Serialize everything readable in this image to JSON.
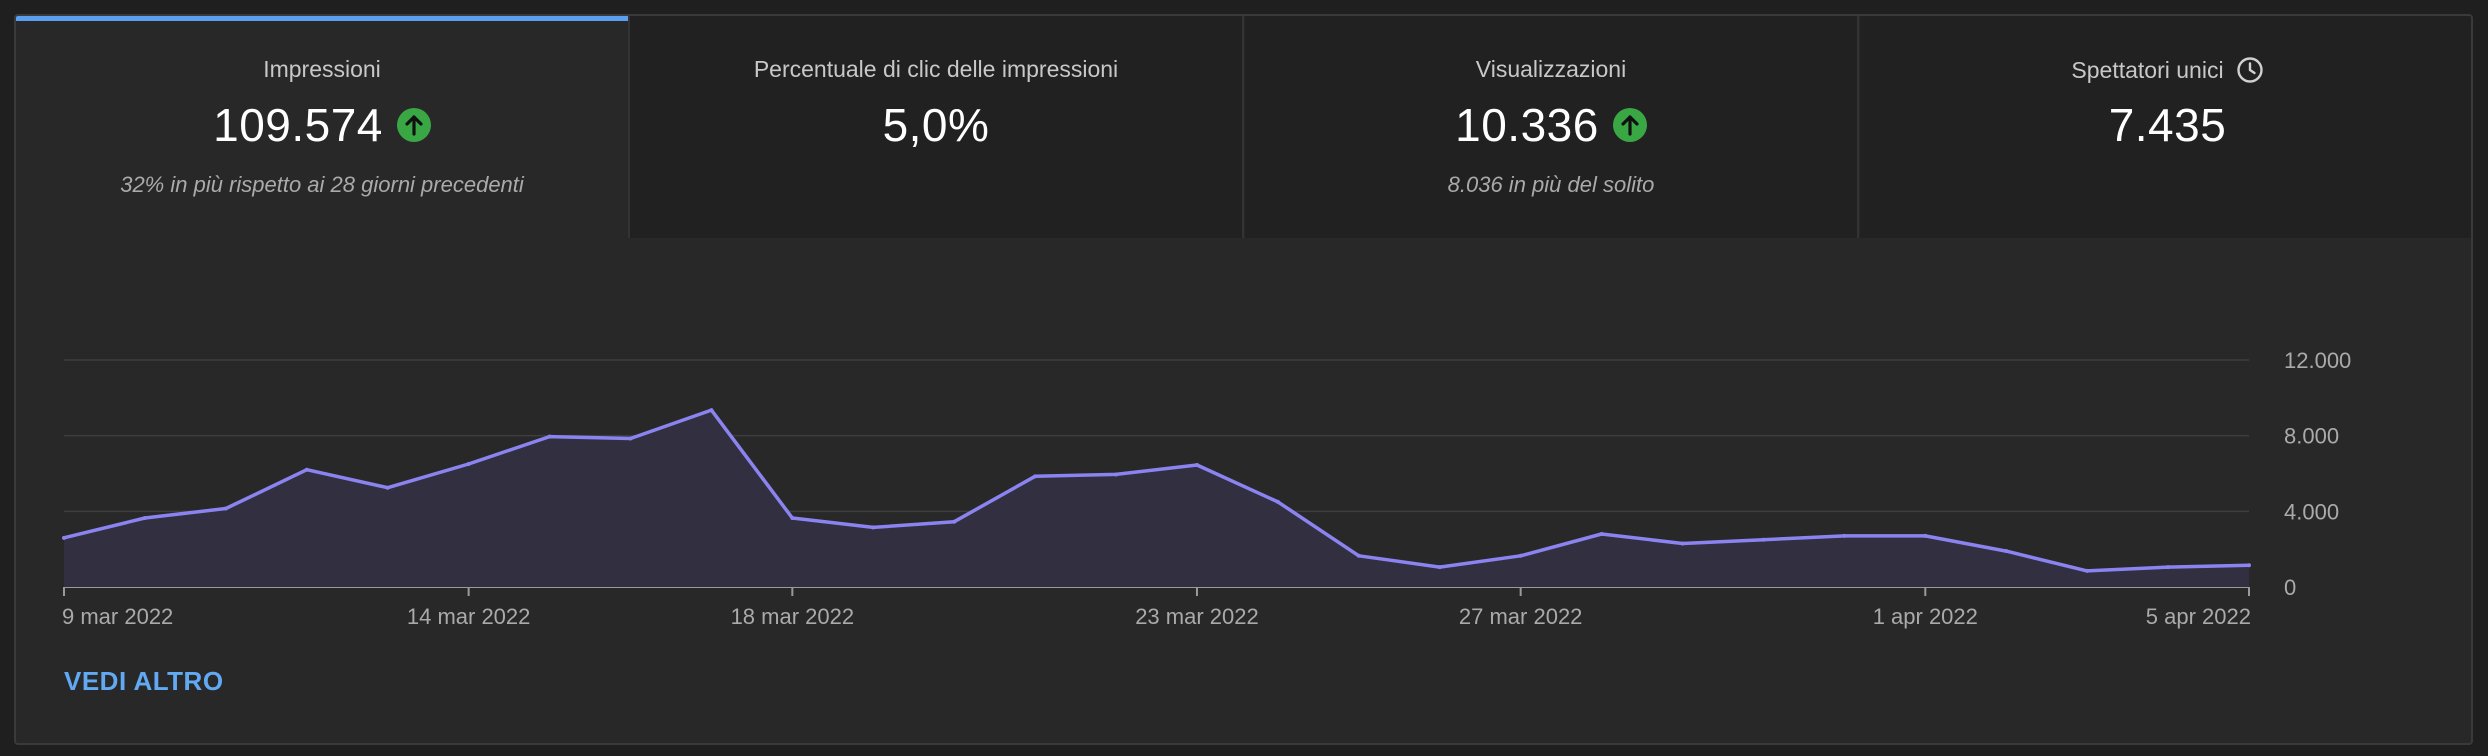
{
  "colors": {
    "accent": "#5b9ff0",
    "line": "#8b83f0",
    "area": "#312f40",
    "up_badge": "#3aa745",
    "link": "#62a9f3"
  },
  "tabs": [
    {
      "title": "Impressioni",
      "value": "109.574",
      "trend_icon": "arrow-up-circle-icon",
      "subtitle": "32% in più rispetto ai 28 giorni precedenti",
      "selected": true
    },
    {
      "title": "Percentuale di clic delle impressioni",
      "value": "5,0%",
      "subtitle": "",
      "selected": false
    },
    {
      "title": "Visualizzazioni",
      "value": "10.336",
      "trend_icon": "arrow-up-circle-icon",
      "subtitle": "8.036 in più del solito",
      "selected": false
    },
    {
      "title": "Spettatori unici",
      "title_icon": "clock-icon",
      "value": "7.435",
      "subtitle": "",
      "selected": false
    }
  ],
  "chart_data": {
    "type": "area",
    "title": "",
    "xlabel": "",
    "ylabel": "",
    "ylim": [
      0,
      12000
    ],
    "yticks": [
      "0",
      "4.000",
      "8.000",
      "12.000"
    ],
    "ytick_values": [
      0,
      4000,
      8000,
      12000
    ],
    "xtick_labels": [
      "9 mar 2022",
      "14 mar 2022",
      "18 mar 2022",
      "23 mar 2022",
      "27 mar 2022",
      "1 apr 2022",
      "5 apr 2022"
    ],
    "xtick_days": [
      0,
      5,
      9,
      14,
      18,
      23,
      27
    ],
    "grid": true,
    "x": [
      0,
      1,
      2,
      3,
      4,
      5,
      6,
      7,
      8,
      9,
      10,
      11,
      12,
      13,
      14,
      15,
      16,
      17,
      18,
      19,
      20,
      21,
      22,
      23,
      24,
      25,
      26,
      27
    ],
    "values": [
      2600,
      3650,
      4150,
      6200,
      5250,
      6500,
      7950,
      7850,
      9350,
      3650,
      3150,
      3450,
      5850,
      5950,
      6450,
      4500,
      1650,
      1050,
      1650,
      2800,
      2300,
      2500,
      2700,
      2700,
      1900,
      850,
      1050,
      1150
    ]
  },
  "see_more_label": "VEDI ALTRO"
}
